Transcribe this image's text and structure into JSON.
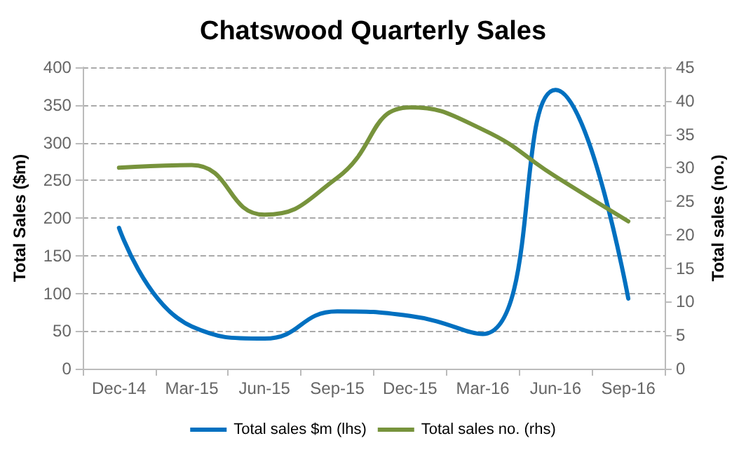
{
  "chart_data": {
    "type": "line",
    "title": "Chatswood Quarterly Sales",
    "ylabel": "Total Sales ($m)",
    "y2label": "Total sales (no.)",
    "categories": [
      "Dec-14",
      "Mar-15",
      "Jun-15",
      "Sep-15",
      "Dec-15",
      "Mar-16",
      "Jun-16",
      "Sep-16"
    ],
    "series": [
      {
        "name": "Total sales $m (lhs)",
        "color": "#0070c0",
        "values": [
          187,
          56,
          40,
          76,
          70,
          46,
          370,
          93
        ]
      },
      {
        "name": "Total sales no. (rhs)",
        "color": "#77933c",
        "axis": "y2",
        "values": [
          30,
          30.4,
          23,
          28.5,
          39,
          35.7,
          28.7,
          22
        ]
      }
    ],
    "ylim": [
      0,
      400
    ],
    "yticks": [
      0,
      50,
      100,
      150,
      200,
      250,
      300,
      350,
      400
    ],
    "y2lim": [
      0,
      45
    ],
    "y2ticks": [
      0,
      5,
      10,
      15,
      20,
      25,
      30,
      35,
      40,
      45
    ],
    "grid": "y",
    "legend": "bottom",
    "marker": "none",
    "line_style": "solid"
  }
}
